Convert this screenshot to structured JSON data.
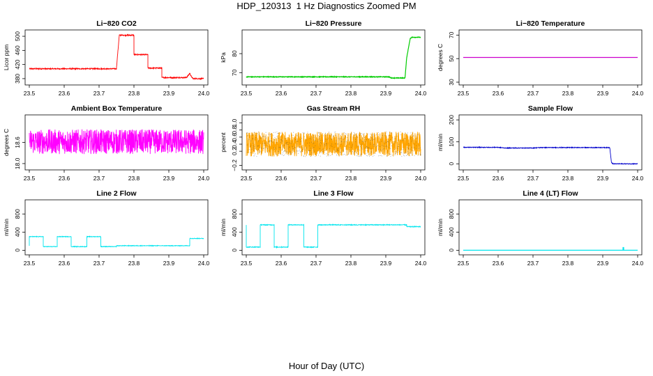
{
  "title": "HDP_120313  1 Hz Diagnostics Zoomed PM",
  "xaxis_label": "Hour of Day (UTC)",
  "chart_data": [
    {
      "type": "line",
      "title": "Li−820 CO2",
      "ylabel": "Licor ppm",
      "color": "#ff0000",
      "xlim": [
        23.5,
        24.0
      ],
      "ylim": [
        370,
        510
      ],
      "x_ticks": [
        "23.5",
        "23.6",
        "23.7",
        "23.8",
        "23.9",
        "24.0"
      ],
      "y_ticks": [
        380,
        420,
        460,
        500
      ],
      "noise": 1.5,
      "x": [
        23.5,
        23.75,
        23.75,
        23.758,
        23.758,
        23.8,
        23.8,
        23.84,
        23.84,
        23.88,
        23.88,
        23.95,
        23.955,
        23.96,
        23.965,
        23.97,
        24.0
      ],
      "y": [
        408,
        408,
        412,
        503,
        503,
        503,
        448,
        448,
        410,
        410,
        383,
        383,
        388,
        395,
        385,
        380,
        380
      ]
    },
    {
      "type": "line",
      "title": "Li−820 Pressure",
      "ylabel": "kPa",
      "color": "#00cc00",
      "xlim": [
        23.5,
        24.0
      ],
      "ylim": [
        65,
        91
      ],
      "x_ticks": [
        "23.5",
        "23.6",
        "23.7",
        "23.8",
        "23.9",
        "24.0"
      ],
      "y_ticks": [
        70,
        80
      ],
      "noise": 0.15,
      "x": [
        23.5,
        23.91,
        23.915,
        23.955,
        23.96,
        23.97,
        23.975,
        24.0
      ],
      "y": [
        67.8,
        67.8,
        67.2,
        67.2,
        78,
        88,
        88.6,
        88.6
      ]
    },
    {
      "type": "line",
      "title": "Li−820 Temperature",
      "ylabel": "degrees C",
      "color": "#cc00cc",
      "xlim": [
        23.5,
        24.0
      ],
      "ylim": [
        30,
        72
      ],
      "x_ticks": [
        "23.5",
        "23.6",
        "23.7",
        "23.8",
        "23.9",
        "24.0"
      ],
      "y_ticks": [
        30,
        50,
        70
      ],
      "noise": 0,
      "x": [
        23.5,
        24.0
      ],
      "y": [
        51,
        51
      ]
    },
    {
      "type": "line",
      "title": "Ambient Box Temperature",
      "ylabel": "degrees C",
      "color": "#ff00ff",
      "xlim": [
        23.5,
        24.0
      ],
      "ylim": [
        17.9,
        19.3
      ],
      "x_ticks": [
        "23.5",
        "23.6",
        "23.7",
        "23.8",
        "23.9",
        "24.0"
      ],
      "y_ticks": [
        18.0,
        18.6
      ],
      "y_tick_labels": [
        "18.0",
        "18.6"
      ],
      "noise": 0.35,
      "x": [
        23.5,
        24.0
      ],
      "y": [
        18.62,
        18.62
      ]
    },
    {
      "type": "line",
      "title": "Gas Stream RH",
      "ylabel": "percent",
      "color": "#ffa500",
      "dot_color": "#444444",
      "xlim": [
        23.5,
        24.0
      ],
      "ylim": [
        -0.25,
        1.15
      ],
      "x_ticks": [
        "23.5",
        "23.6",
        "23.7",
        "23.8",
        "23.9",
        "24.0"
      ],
      "y_ticks": [
        -0.2,
        0.2,
        0.4,
        0.6,
        0.8,
        1.0
      ],
      "y_tick_labels": [
        "−0.2",
        "0.2",
        "0.4",
        "0.6",
        "0.8",
        "1.0"
      ],
      "noise": 0.35,
      "x": [
        23.5,
        24.0
      ],
      "y": [
        0.4,
        0.4
      ]
    },
    {
      "type": "line",
      "title": "Sample Flow",
      "ylabel": "ml/min",
      "color": "#0000cc",
      "xlim": [
        23.5,
        24.0
      ],
      "ylim": [
        -15,
        210
      ],
      "x_ticks": [
        "23.5",
        "23.6",
        "23.7",
        "23.8",
        "23.9",
        "24.0"
      ],
      "y_ticks": [
        0,
        100,
        200
      ],
      "noise": 1.5,
      "x": [
        23.5,
        23.6,
        23.62,
        23.7,
        23.72,
        23.92,
        23.925,
        23.93,
        24.0
      ],
      "y": [
        75,
        75,
        72,
        72,
        74,
        74,
        5,
        0,
        0
      ]
    },
    {
      "type": "line",
      "title": "Line 2 Flow",
      "ylabel": "ml/min",
      "color": "#00e5ee",
      "xlim": [
        23.5,
        24.0
      ],
      "ylim": [
        -40,
        1050
      ],
      "x_ticks": [
        "23.5",
        "23.6",
        "23.7",
        "23.8",
        "23.9",
        "24.0"
      ],
      "y_ticks": [
        0,
        400,
        800
      ],
      "noise": 6,
      "x": [
        23.5,
        23.5,
        23.54,
        23.54,
        23.58,
        23.58,
        23.62,
        23.62,
        23.665,
        23.665,
        23.705,
        23.705,
        23.75,
        23.75,
        23.96,
        23.96,
        24.0
      ],
      "y": [
        100,
        300,
        300,
        80,
        80,
        300,
        300,
        80,
        80,
        300,
        300,
        80,
        80,
        100,
        100,
        260,
        260
      ]
    },
    {
      "type": "line",
      "title": "Line 3 Flow",
      "ylabel": "ml/min",
      "color": "#00e5ee",
      "xlim": [
        23.5,
        24.0
      ],
      "ylim": [
        -40,
        1050
      ],
      "x_ticks": [
        "23.5",
        "23.6",
        "23.7",
        "23.8",
        "23.9",
        "24.0"
      ],
      "y_ticks": [
        0,
        400,
        800
      ],
      "noise": 8,
      "x": [
        23.5,
        23.5,
        23.5,
        23.54,
        23.54,
        23.58,
        23.58,
        23.62,
        23.62,
        23.665,
        23.665,
        23.705,
        23.705,
        23.96,
        23.96,
        24.0
      ],
      "y": [
        70,
        560,
        70,
        70,
        560,
        560,
        70,
        70,
        560,
        560,
        70,
        70,
        560,
        560,
        520,
        520
      ]
    },
    {
      "type": "line",
      "title": "Line 4 (LT) Flow",
      "ylabel": "ml/min",
      "color": "#00e5ee",
      "xlim": [
        23.5,
        24.0
      ],
      "ylim": [
        -40,
        1050
      ],
      "x_ticks": [
        "23.5",
        "23.6",
        "23.7",
        "23.8",
        "23.9",
        "24.0"
      ],
      "y_ticks": [
        0,
        400,
        800
      ],
      "noise": 0,
      "x": [
        23.5,
        23.958,
        23.958,
        23.96,
        23.96,
        24.0
      ],
      "y": [
        0,
        0,
        60,
        60,
        0,
        0
      ]
    }
  ]
}
